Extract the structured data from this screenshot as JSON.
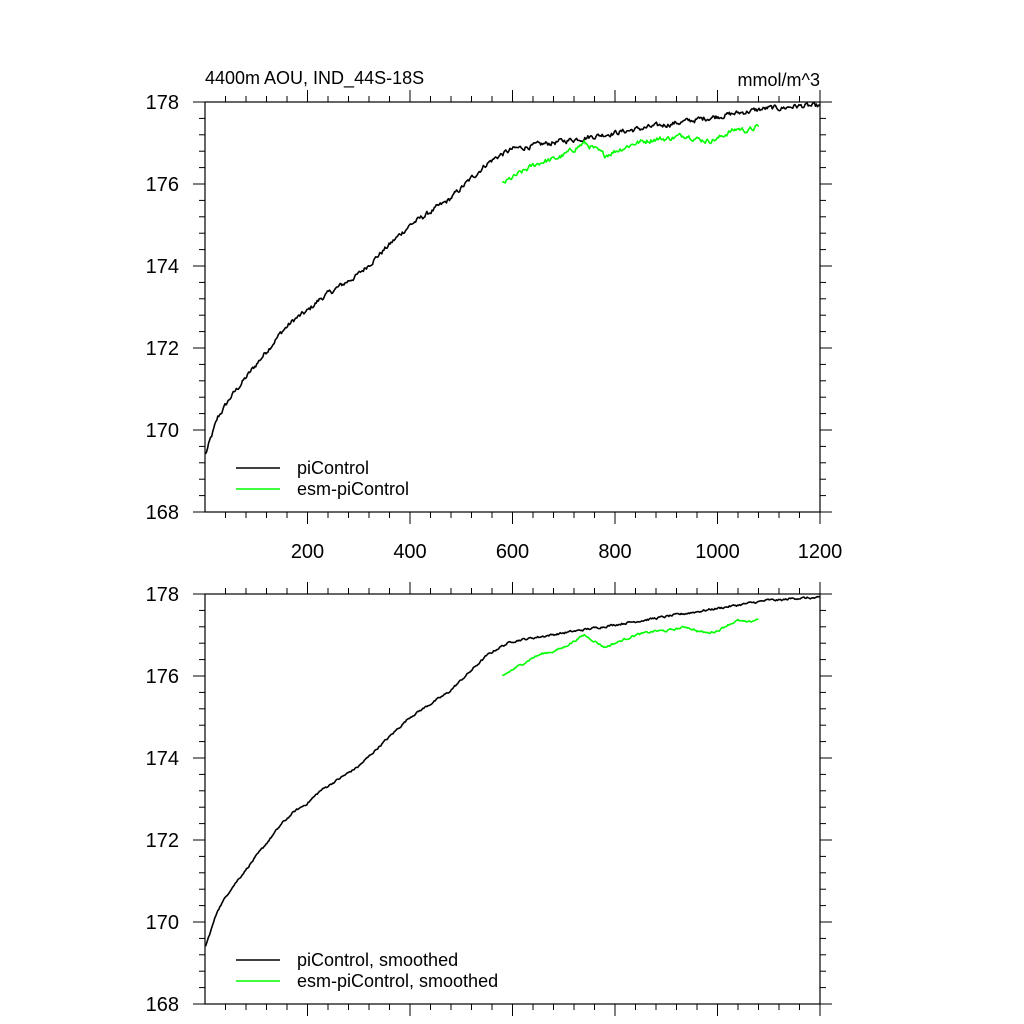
{
  "chart_data": [
    {
      "type": "line",
      "title": "4400m AOU, IND_44S-18S",
      "units": "mmol/m^3",
      "xlim": [
        0,
        1200
      ],
      "ylim": [
        168,
        178
      ],
      "xticks": [
        200,
        400,
        600,
        800,
        1000,
        1200
      ],
      "xtick_labels": [
        "200",
        "400",
        "600",
        "800",
        "1000",
        "1200"
      ],
      "yticks": [
        168,
        170,
        172,
        174,
        176,
        178
      ],
      "ytick_labels": [
        "168",
        "170",
        "172",
        "174",
        "176",
        "178"
      ],
      "legend_position": "bottom-left",
      "series": [
        {
          "name": "piControl",
          "color": "#000000",
          "x": [
            1,
            25,
            50,
            75,
            100,
            125,
            150,
            175,
            200,
            225,
            250,
            275,
            300,
            325,
            350,
            375,
            400,
            425,
            450,
            475,
            500,
            525,
            550,
            575,
            600,
            625,
            650,
            675,
            700,
            725,
            750,
            775,
            800,
            825,
            850,
            875,
            900,
            925,
            950,
            975,
            1000,
            1025,
            1050,
            1075,
            1100,
            1125,
            1150,
            1175,
            1200
          ],
          "y": [
            169.4,
            170.3,
            170.8,
            171.2,
            171.6,
            172.0,
            172.4,
            172.7,
            172.9,
            173.2,
            173.4,
            173.6,
            173.8,
            174.1,
            174.4,
            174.7,
            175.0,
            175.2,
            175.4,
            175.6,
            175.9,
            176.2,
            176.5,
            176.7,
            176.85,
            176.9,
            176.95,
            177.0,
            177.05,
            177.1,
            177.15,
            177.2,
            177.25,
            177.3,
            177.35,
            177.4,
            177.45,
            177.5,
            177.55,
            177.6,
            177.65,
            177.7,
            177.75,
            177.8,
            177.85,
            177.85,
            177.9,
            177.9,
            177.9
          ],
          "noise": 0.12
        },
        {
          "name": "esm-piControl",
          "color": "#00ff00",
          "x": [
            580,
            600,
            620,
            640,
            660,
            680,
            700,
            720,
            740,
            760,
            780,
            800,
            820,
            840,
            860,
            880,
            900,
            920,
            940,
            960,
            980,
            1000,
            1020,
            1040,
            1060,
            1080
          ],
          "y": [
            176.0,
            176.15,
            176.3,
            176.45,
            176.55,
            176.6,
            176.7,
            176.85,
            177.0,
            176.85,
            176.7,
            176.8,
            176.9,
            177.0,
            177.05,
            177.1,
            177.1,
            177.15,
            177.2,
            177.1,
            177.05,
            177.1,
            177.25,
            177.35,
            177.3,
            177.4
          ],
          "noise": 0.12
        }
      ]
    },
    {
      "type": "line",
      "xlim": [
        0,
        1200
      ],
      "ylim": [
        168,
        178
      ],
      "yticks": [
        168,
        170,
        172,
        174,
        176,
        178
      ],
      "ytick_labels": [
        "168",
        "170",
        "172",
        "174",
        "176",
        "178"
      ],
      "legend_position": "bottom-left",
      "series": [
        {
          "name": "piControl, smoothed",
          "color": "#000000",
          "x": [
            1,
            25,
            50,
            75,
            100,
            125,
            150,
            175,
            200,
            225,
            250,
            275,
            300,
            325,
            350,
            375,
            400,
            425,
            450,
            475,
            500,
            525,
            550,
            575,
            600,
            625,
            650,
            675,
            700,
            725,
            750,
            775,
            800,
            825,
            850,
            875,
            900,
            925,
            950,
            975,
            1000,
            1025,
            1050,
            1075,
            1100,
            1125,
            1150,
            1175,
            1200
          ],
          "y": [
            169.4,
            170.3,
            170.8,
            171.2,
            171.6,
            172.0,
            172.4,
            172.7,
            172.9,
            173.2,
            173.4,
            173.6,
            173.8,
            174.1,
            174.4,
            174.7,
            175.0,
            175.2,
            175.4,
            175.6,
            175.9,
            176.2,
            176.5,
            176.7,
            176.85,
            176.9,
            176.95,
            177.0,
            177.05,
            177.1,
            177.15,
            177.2,
            177.25,
            177.3,
            177.35,
            177.4,
            177.45,
            177.5,
            177.55,
            177.6,
            177.65,
            177.7,
            177.75,
            177.8,
            177.85,
            177.85,
            177.9,
            177.9,
            177.9
          ],
          "noise": 0.05
        },
        {
          "name": "esm-piControl, smoothed",
          "color": "#00ff00",
          "x": [
            580,
            600,
            620,
            640,
            660,
            680,
            700,
            720,
            740,
            760,
            780,
            800,
            820,
            840,
            860,
            880,
            900,
            920,
            940,
            960,
            980,
            1000,
            1020,
            1040,
            1060,
            1080
          ],
          "y": [
            176.0,
            176.15,
            176.3,
            176.45,
            176.55,
            176.6,
            176.7,
            176.85,
            177.0,
            176.85,
            176.7,
            176.8,
            176.9,
            177.0,
            177.05,
            177.1,
            177.1,
            177.15,
            177.2,
            177.1,
            177.05,
            177.1,
            177.25,
            177.35,
            177.3,
            177.4
          ],
          "noise": 0.05
        }
      ]
    }
  ]
}
